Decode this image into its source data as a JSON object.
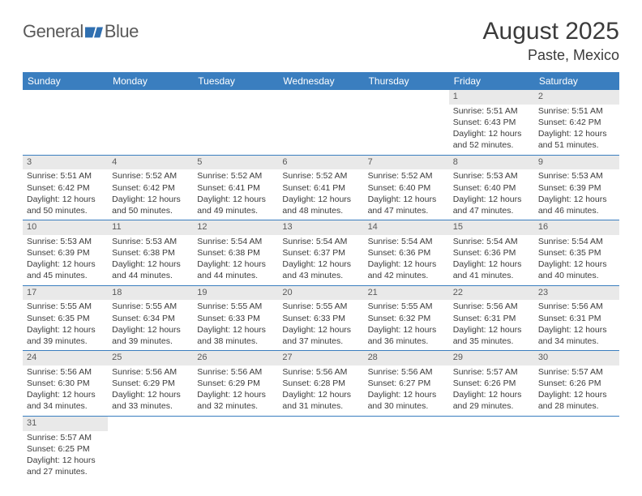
{
  "header": {
    "logo_general": "General",
    "logo_blue": "Blue",
    "month_title": "August 2025",
    "location": "Paste, Mexico"
  },
  "colors": {
    "header_bg": "#3a7ebf",
    "header_text": "#ffffff",
    "daynum_bg": "#e9e9e9",
    "row_border": "#3a7ebf",
    "text": "#3b3b3b",
    "logo_fill": "#2f6fb0"
  },
  "day_headers": [
    "Sunday",
    "Monday",
    "Tuesday",
    "Wednesday",
    "Thursday",
    "Friday",
    "Saturday"
  ],
  "weeks": [
    [
      null,
      null,
      null,
      null,
      null,
      {
        "n": "1",
        "sr": "Sunrise: 5:51 AM",
        "ss": "Sunset: 6:43 PM",
        "d1": "Daylight: 12 hours",
        "d2": "and 52 minutes."
      },
      {
        "n": "2",
        "sr": "Sunrise: 5:51 AM",
        "ss": "Sunset: 6:42 PM",
        "d1": "Daylight: 12 hours",
        "d2": "and 51 minutes."
      }
    ],
    [
      {
        "n": "3",
        "sr": "Sunrise: 5:51 AM",
        "ss": "Sunset: 6:42 PM",
        "d1": "Daylight: 12 hours",
        "d2": "and 50 minutes."
      },
      {
        "n": "4",
        "sr": "Sunrise: 5:52 AM",
        "ss": "Sunset: 6:42 PM",
        "d1": "Daylight: 12 hours",
        "d2": "and 50 minutes."
      },
      {
        "n": "5",
        "sr": "Sunrise: 5:52 AM",
        "ss": "Sunset: 6:41 PM",
        "d1": "Daylight: 12 hours",
        "d2": "and 49 minutes."
      },
      {
        "n": "6",
        "sr": "Sunrise: 5:52 AM",
        "ss": "Sunset: 6:41 PM",
        "d1": "Daylight: 12 hours",
        "d2": "and 48 minutes."
      },
      {
        "n": "7",
        "sr": "Sunrise: 5:52 AM",
        "ss": "Sunset: 6:40 PM",
        "d1": "Daylight: 12 hours",
        "d2": "and 47 minutes."
      },
      {
        "n": "8",
        "sr": "Sunrise: 5:53 AM",
        "ss": "Sunset: 6:40 PM",
        "d1": "Daylight: 12 hours",
        "d2": "and 47 minutes."
      },
      {
        "n": "9",
        "sr": "Sunrise: 5:53 AM",
        "ss": "Sunset: 6:39 PM",
        "d1": "Daylight: 12 hours",
        "d2": "and 46 minutes."
      }
    ],
    [
      {
        "n": "10",
        "sr": "Sunrise: 5:53 AM",
        "ss": "Sunset: 6:39 PM",
        "d1": "Daylight: 12 hours",
        "d2": "and 45 minutes."
      },
      {
        "n": "11",
        "sr": "Sunrise: 5:53 AM",
        "ss": "Sunset: 6:38 PM",
        "d1": "Daylight: 12 hours",
        "d2": "and 44 minutes."
      },
      {
        "n": "12",
        "sr": "Sunrise: 5:54 AM",
        "ss": "Sunset: 6:38 PM",
        "d1": "Daylight: 12 hours",
        "d2": "and 44 minutes."
      },
      {
        "n": "13",
        "sr": "Sunrise: 5:54 AM",
        "ss": "Sunset: 6:37 PM",
        "d1": "Daylight: 12 hours",
        "d2": "and 43 minutes."
      },
      {
        "n": "14",
        "sr": "Sunrise: 5:54 AM",
        "ss": "Sunset: 6:36 PM",
        "d1": "Daylight: 12 hours",
        "d2": "and 42 minutes."
      },
      {
        "n": "15",
        "sr": "Sunrise: 5:54 AM",
        "ss": "Sunset: 6:36 PM",
        "d1": "Daylight: 12 hours",
        "d2": "and 41 minutes."
      },
      {
        "n": "16",
        "sr": "Sunrise: 5:54 AM",
        "ss": "Sunset: 6:35 PM",
        "d1": "Daylight: 12 hours",
        "d2": "and 40 minutes."
      }
    ],
    [
      {
        "n": "17",
        "sr": "Sunrise: 5:55 AM",
        "ss": "Sunset: 6:35 PM",
        "d1": "Daylight: 12 hours",
        "d2": "and 39 minutes."
      },
      {
        "n": "18",
        "sr": "Sunrise: 5:55 AM",
        "ss": "Sunset: 6:34 PM",
        "d1": "Daylight: 12 hours",
        "d2": "and 39 minutes."
      },
      {
        "n": "19",
        "sr": "Sunrise: 5:55 AM",
        "ss": "Sunset: 6:33 PM",
        "d1": "Daylight: 12 hours",
        "d2": "and 38 minutes."
      },
      {
        "n": "20",
        "sr": "Sunrise: 5:55 AM",
        "ss": "Sunset: 6:33 PM",
        "d1": "Daylight: 12 hours",
        "d2": "and 37 minutes."
      },
      {
        "n": "21",
        "sr": "Sunrise: 5:55 AM",
        "ss": "Sunset: 6:32 PM",
        "d1": "Daylight: 12 hours",
        "d2": "and 36 minutes."
      },
      {
        "n": "22",
        "sr": "Sunrise: 5:56 AM",
        "ss": "Sunset: 6:31 PM",
        "d1": "Daylight: 12 hours",
        "d2": "and 35 minutes."
      },
      {
        "n": "23",
        "sr": "Sunrise: 5:56 AM",
        "ss": "Sunset: 6:31 PM",
        "d1": "Daylight: 12 hours",
        "d2": "and 34 minutes."
      }
    ],
    [
      {
        "n": "24",
        "sr": "Sunrise: 5:56 AM",
        "ss": "Sunset: 6:30 PM",
        "d1": "Daylight: 12 hours",
        "d2": "and 34 minutes."
      },
      {
        "n": "25",
        "sr": "Sunrise: 5:56 AM",
        "ss": "Sunset: 6:29 PM",
        "d1": "Daylight: 12 hours",
        "d2": "and 33 minutes."
      },
      {
        "n": "26",
        "sr": "Sunrise: 5:56 AM",
        "ss": "Sunset: 6:29 PM",
        "d1": "Daylight: 12 hours",
        "d2": "and 32 minutes."
      },
      {
        "n": "27",
        "sr": "Sunrise: 5:56 AM",
        "ss": "Sunset: 6:28 PM",
        "d1": "Daylight: 12 hours",
        "d2": "and 31 minutes."
      },
      {
        "n": "28",
        "sr": "Sunrise: 5:56 AM",
        "ss": "Sunset: 6:27 PM",
        "d1": "Daylight: 12 hours",
        "d2": "and 30 minutes."
      },
      {
        "n": "29",
        "sr": "Sunrise: 5:57 AM",
        "ss": "Sunset: 6:26 PM",
        "d1": "Daylight: 12 hours",
        "d2": "and 29 minutes."
      },
      {
        "n": "30",
        "sr": "Sunrise: 5:57 AM",
        "ss": "Sunset: 6:26 PM",
        "d1": "Daylight: 12 hours",
        "d2": "and 28 minutes."
      }
    ],
    [
      {
        "n": "31",
        "sr": "Sunrise: 5:57 AM",
        "ss": "Sunset: 6:25 PM",
        "d1": "Daylight: 12 hours",
        "d2": "and 27 minutes."
      },
      null,
      null,
      null,
      null,
      null,
      null
    ]
  ]
}
